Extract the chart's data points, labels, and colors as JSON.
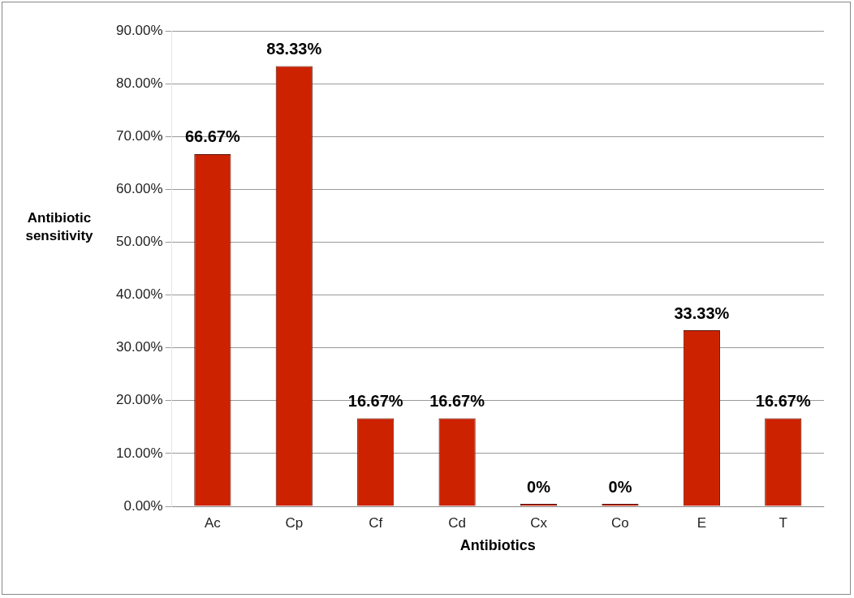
{
  "chart_data": {
    "type": "bar",
    "xlabel": "Antibiotics",
    "ylabel": "Antibiotic sensitivity",
    "categories": [
      "Ac",
      "Cp",
      "Cf",
      "Cd",
      "Cx",
      "Co",
      "E",
      "T"
    ],
    "values": [
      66.67,
      83.33,
      16.67,
      16.67,
      0,
      0,
      33.33,
      16.67
    ],
    "value_labels": [
      "66.67%",
      "83.33%",
      "16.67%",
      "16.67%",
      "0%",
      "0%",
      "33.33%",
      "16.67%"
    ],
    "color": "#cc2200",
    "ylim": [
      0,
      90
    ],
    "yticks": [
      {
        "value": 0,
        "label": "0.00%"
      },
      {
        "value": 10,
        "label": "10.00%"
      },
      {
        "value": 20,
        "label": "20.00%"
      },
      {
        "value": 30,
        "label": "30.00%"
      },
      {
        "value": 40,
        "label": "40.00%"
      },
      {
        "value": 50,
        "label": "50.00%"
      },
      {
        "value": 60,
        "label": "60.00%"
      },
      {
        "value": 70,
        "label": "70.00%"
      },
      {
        "value": 80,
        "label": "80.00%"
      },
      {
        "value": 90,
        "label": "90.00%"
      }
    ],
    "grid": "y",
    "legend": false
  }
}
